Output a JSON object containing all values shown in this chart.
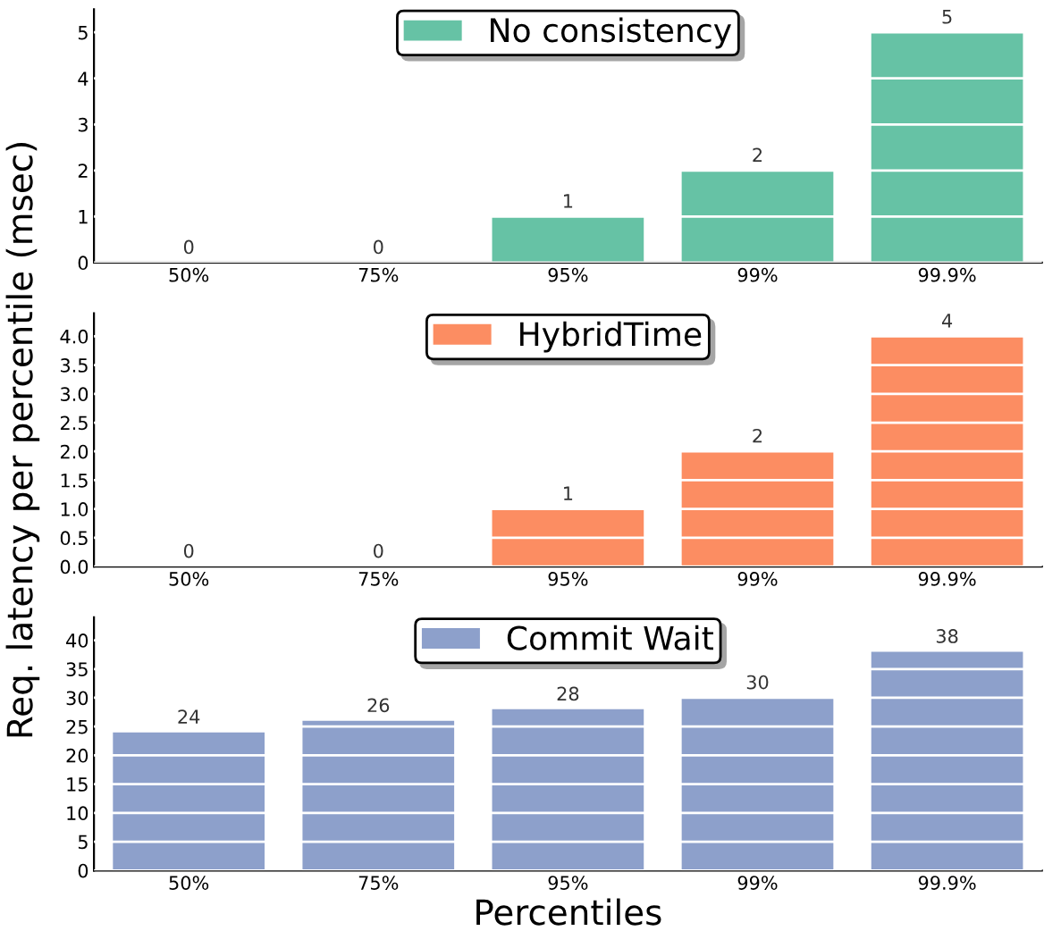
{
  "chart_data": [
    {
      "type": "bar",
      "categories": [
        "50%",
        "75%",
        "95%",
        "99%",
        "99.9%"
      ],
      "series": [
        {
          "name": "No consistency",
          "color": "#66c2a5",
          "values": [
            0,
            0,
            1,
            2,
            5
          ]
        }
      ],
      "ylim": [
        0,
        5.5
      ],
      "yticks": [
        0,
        1,
        2,
        3,
        4,
        5
      ],
      "grid": "y",
      "legend": "top",
      "data_labels": true
    },
    {
      "type": "bar",
      "categories": [
        "50%",
        "75%",
        "95%",
        "99%",
        "99.9%"
      ],
      "ylabel": "Req. latency per percentile (msec)",
      "series": [
        {
          "name": "HybridTime",
          "color": "#fc8d62",
          "values": [
            0,
            0,
            1,
            2,
            4
          ]
        }
      ],
      "ylim": [
        0,
        4.4
      ],
      "yticks": [
        {
          "value": 0,
          "label": "0.0"
        },
        0.5,
        {
          "value": 1,
          "label": "1.0"
        },
        1.5,
        {
          "value": 2,
          "label": "2.0"
        },
        2.5,
        {
          "value": 3,
          "label": "3.0"
        },
        3.5,
        {
          "value": 4,
          "label": "4.0"
        }
      ],
      "grid": "y",
      "legend": "top",
      "data_labels": true
    },
    {
      "type": "bar",
      "categories": [
        "50%",
        "75%",
        "95%",
        "99%",
        "99.9%"
      ],
      "xlabel": "Percentiles",
      "series": [
        {
          "name": "Commit Wait",
          "color": "#8da0cb",
          "values": [
            24,
            26,
            28,
            30,
            38
          ]
        }
      ],
      "ylim": [
        0,
        44
      ],
      "yticks": [
        0,
        5,
        10,
        15,
        20,
        25,
        30,
        35,
        40
      ],
      "grid": "y",
      "legend": "top",
      "data_labels": true
    }
  ]
}
